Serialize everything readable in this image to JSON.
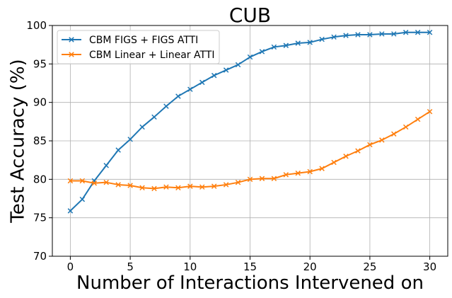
{
  "chart_data": {
    "type": "line",
    "title": "CUB",
    "xlabel": "Number of Interactions Intervened on",
    "ylabel": "Test Accuracy (%)",
    "xlim": [
      -1.5,
      31.5
    ],
    "ylim": [
      70,
      100
    ],
    "xticks": [
      0,
      5,
      10,
      15,
      20,
      25,
      30
    ],
    "yticks": [
      70,
      75,
      80,
      85,
      90,
      95,
      100
    ],
    "grid": true,
    "legend_position": "upper left",
    "x": [
      0,
      1,
      2,
      3,
      4,
      5,
      6,
      7,
      8,
      9,
      10,
      11,
      12,
      13,
      14,
      15,
      16,
      17,
      18,
      19,
      20,
      21,
      22,
      23,
      24,
      25,
      26,
      27,
      28,
      29,
      30
    ],
    "series": [
      {
        "name": "CBM FIGS + FIGS ATTI",
        "color": "#1f77b4",
        "marker": "x",
        "values": [
          75.9,
          77.4,
          79.8,
          81.8,
          83.8,
          85.2,
          86.8,
          88.1,
          89.5,
          90.8,
          91.7,
          92.6,
          93.5,
          94.2,
          94.9,
          95.9,
          96.6,
          97.2,
          97.4,
          97.7,
          97.8,
          98.2,
          98.5,
          98.7,
          98.8,
          98.8,
          98.9,
          98.9,
          99.1,
          99.1,
          99.1
        ]
      },
      {
        "name": "CBM Linear + Linear ATTI",
        "color": "#ff7f0e",
        "marker": "x",
        "values": [
          79.8,
          79.8,
          79.5,
          79.6,
          79.3,
          79.2,
          78.9,
          78.8,
          79.0,
          78.9,
          79.1,
          79.0,
          79.1,
          79.3,
          79.6,
          80.0,
          80.1,
          80.1,
          80.6,
          80.8,
          81.0,
          81.4,
          82.2,
          83.0,
          83.7,
          84.5,
          85.1,
          85.9,
          86.8,
          87.8,
          88.8
        ]
      }
    ]
  }
}
